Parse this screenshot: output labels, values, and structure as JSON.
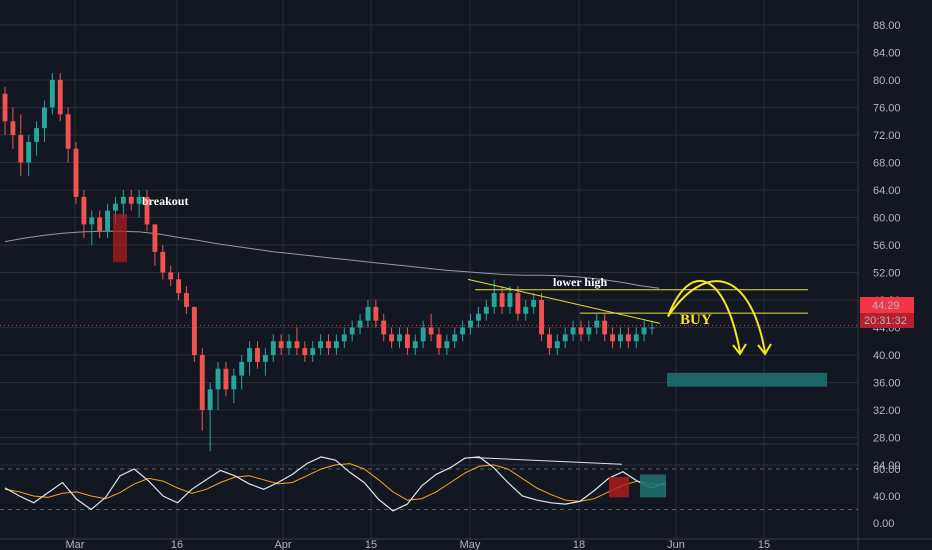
{
  "chart_data": {
    "type": "candlestick",
    "colors": {
      "background": "#131722",
      "grid": "#2a2e39",
      "up": "#26a69a",
      "down": "#ef5350",
      "ma": "#9598a1",
      "annotation_line": "#e6e22b",
      "annotation_arrow": "#f2e81e",
      "target_zone": "#1e6f6f",
      "price_label": "#f23645",
      "stoch_k": "#e0e3eb",
      "stoch_d": "#f6a524"
    },
    "x_ticks": [
      "Mar",
      "16",
      "Apr",
      "15",
      "May",
      "18",
      "Jun",
      "15"
    ],
    "y_ticks": [
      "88.00",
      "84.00",
      "80.00",
      "76.00",
      "72.00",
      "68.00",
      "64.00",
      "60.00",
      "56.00",
      "52.00",
      "48.00",
      "44.00",
      "40.00",
      "36.00",
      "32.00",
      "28.00",
      "24.00"
    ],
    "ylim": [
      24,
      88
    ],
    "current_price": "44.29",
    "countdown": "20:31:32",
    "annotations": {
      "breakout": "breakout",
      "lower_high": "lower high",
      "buy": "BUY"
    },
    "horizontal_levels": [
      49.5,
      46.1
    ],
    "target_zone": [
      35.4,
      37.4
    ],
    "candles": [
      [
        78,
        79,
        72,
        74
      ],
      [
        74,
        76,
        70,
        72
      ],
      [
        72,
        75,
        66,
        68
      ],
      [
        68,
        72,
        66,
        71
      ],
      [
        71,
        74,
        69,
        73
      ],
      [
        73,
        77,
        71,
        76
      ],
      [
        76,
        81,
        75,
        80
      ],
      [
        80,
        81,
        74,
        75
      ],
      [
        75,
        76,
        68,
        70
      ],
      [
        70,
        71,
        62,
        63
      ],
      [
        63,
        64,
        57,
        59
      ],
      [
        59,
        61,
        56,
        60
      ],
      [
        60,
        61,
        57,
        58
      ],
      [
        58,
        62,
        57,
        61
      ],
      [
        61,
        63,
        59,
        62
      ],
      [
        62,
        64,
        60,
        63
      ],
      [
        63,
        64,
        61,
        62
      ],
      [
        62,
        64,
        60,
        63
      ],
      [
        63,
        64,
        58,
        59
      ],
      [
        59,
        59,
        53,
        55
      ],
      [
        55,
        56,
        51,
        52
      ],
      [
        52,
        53,
        50,
        51
      ],
      [
        51,
        52,
        48,
        49
      ],
      [
        49,
        50,
        46,
        47
      ],
      [
        47,
        47,
        39,
        40
      ],
      [
        40,
        41,
        29,
        32
      ],
      [
        32,
        36,
        26,
        35
      ],
      [
        35,
        39,
        32,
        38
      ],
      [
        38,
        39,
        34,
        35
      ],
      [
        35,
        38,
        33,
        37
      ],
      [
        37,
        40,
        35,
        39
      ],
      [
        39,
        42,
        37,
        41
      ],
      [
        41,
        42,
        38,
        39
      ],
      [
        39,
        41,
        37,
        40
      ],
      [
        40,
        43,
        39,
        42
      ],
      [
        42,
        43,
        40,
        41
      ],
      [
        41,
        43,
        40,
        42
      ],
      [
        42,
        44,
        40,
        41
      ],
      [
        41,
        42,
        39,
        40
      ],
      [
        40,
        42,
        39,
        41
      ],
      [
        41,
        43,
        40,
        42
      ],
      [
        42,
        43,
        40,
        41
      ],
      [
        41,
        43,
        40,
        42
      ],
      [
        42,
        44,
        41,
        43
      ],
      [
        43,
        45,
        42,
        44
      ],
      [
        44,
        46,
        43,
        45
      ],
      [
        45,
        48,
        44,
        47
      ],
      [
        47,
        48,
        44,
        45
      ],
      [
        45,
        46,
        42,
        43
      ],
      [
        43,
        44,
        41,
        42
      ],
      [
        42,
        44,
        41,
        43
      ],
      [
        43,
        44,
        40,
        41
      ],
      [
        41,
        43,
        40,
        42
      ],
      [
        42,
        45,
        41,
        44
      ],
      [
        44,
        46,
        42,
        43
      ],
      [
        43,
        44,
        40,
        41
      ],
      [
        41,
        43,
        40,
        42
      ],
      [
        42,
        44,
        41,
        43
      ],
      [
        43,
        45,
        42,
        44
      ],
      [
        44,
        46,
        43,
        45
      ],
      [
        45,
        47,
        44,
        46
      ],
      [
        46,
        48,
        45,
        47
      ],
      [
        47,
        51,
        46,
        49
      ],
      [
        49,
        50,
        46,
        47
      ],
      [
        47,
        50,
        46,
        49
      ],
      [
        49,
        50,
        45,
        46
      ],
      [
        46,
        48,
        45,
        47
      ],
      [
        47,
        49,
        46,
        48
      ],
      [
        48,
        49,
        42,
        43
      ],
      [
        43,
        44,
        40,
        41
      ],
      [
        41,
        43,
        40,
        42
      ],
      [
        42,
        44,
        41,
        43
      ],
      [
        43,
        45,
        42,
        44
      ],
      [
        44,
        45,
        42,
        43
      ],
      [
        43,
        45,
        42,
        44
      ],
      [
        44,
        46,
        43,
        45
      ],
      [
        45,
        46,
        42,
        43
      ],
      [
        43,
        44,
        41,
        42
      ],
      [
        42,
        44,
        41,
        43
      ],
      [
        43,
        44,
        41,
        42
      ],
      [
        42,
        44,
        41,
        43
      ],
      [
        43,
        45,
        42,
        44
      ],
      [
        44,
        45,
        43,
        44
      ]
    ],
    "ma_values": [
      56.5,
      57.0,
      57.4,
      57.7,
      57.9,
      58.0,
      58.0,
      57.9,
      57.6,
      57.1,
      56.7,
      56.2,
      55.8,
      55.4,
      55.0,
      54.7,
      54.4,
      54.1,
      53.8,
      53.5,
      53.2,
      52.9,
      52.6,
      52.3,
      52.1,
      51.9,
      51.7,
      51.6,
      51.6,
      51.5,
      51.3,
      51.0,
      50.6,
      50.1,
      49.7
    ],
    "stoch_k": [
      52,
      40,
      30,
      45,
      60,
      35,
      20,
      38,
      70,
      80,
      62,
      40,
      30,
      50,
      64,
      78,
      70,
      58,
      50,
      60,
      72,
      88,
      98,
      93,
      75,
      60,
      35,
      18,
      28,
      55,
      72,
      82,
      96,
      98,
      82,
      60,
      40,
      34,
      30,
      28,
      32,
      48,
      66,
      76,
      62,
      52,
      60
    ],
    "stoch_d": [
      50,
      46,
      40,
      38,
      44,
      46,
      40,
      36,
      45,
      58,
      66,
      62,
      52,
      44,
      50,
      60,
      68,
      70,
      64,
      58,
      60,
      70,
      80,
      86,
      88,
      80,
      64,
      46,
      34,
      36,
      46,
      60,
      74,
      84,
      86,
      80,
      66,
      52,
      42,
      34,
      32,
      36,
      46,
      56,
      62,
      58,
      56
    ],
    "stoch_ticks": [
      "80.00",
      "40.00",
      "0.00"
    ]
  }
}
